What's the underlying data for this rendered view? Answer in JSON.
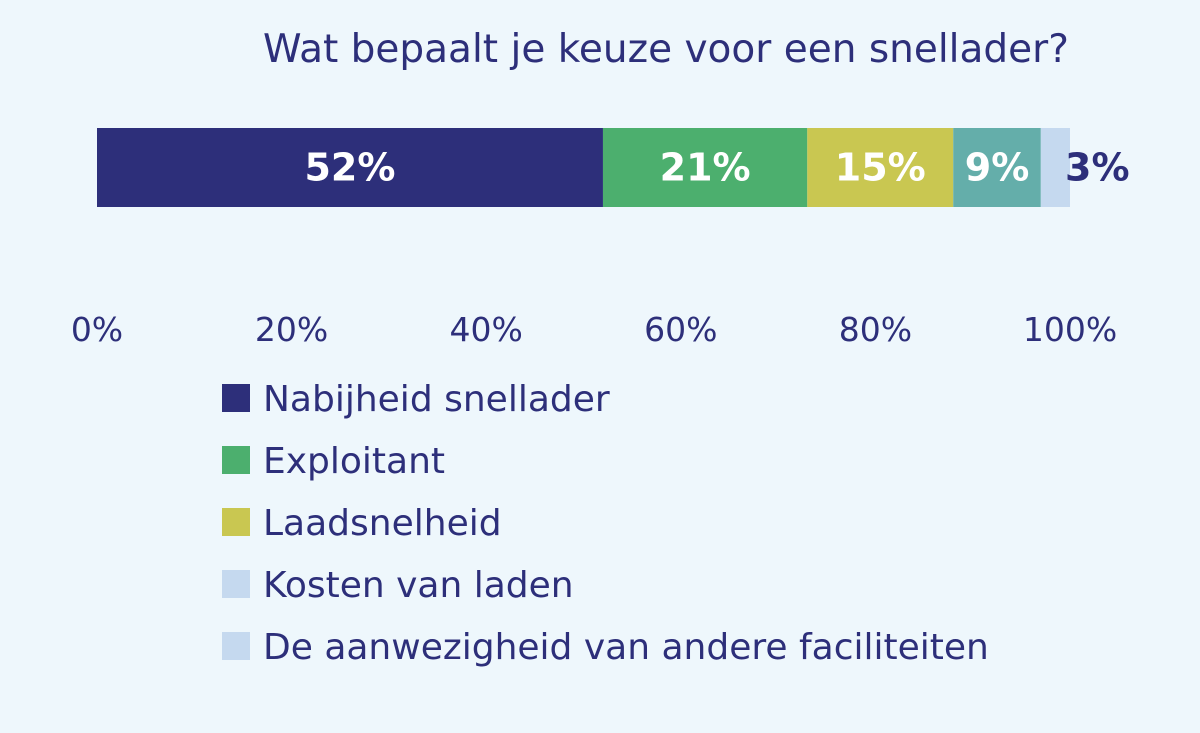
{
  "chart_data": {
    "type": "bar",
    "orientation": "horizontal-stacked",
    "title": "Wat bepaalt je keuze voor een snellader?",
    "series": [
      {
        "name": "Nabijheid snellader",
        "value": 52,
        "label": "52%",
        "color": "#2d2f7a"
      },
      {
        "name": "Exploitant",
        "value": 21,
        "label": "21%",
        "color": "#4caf6e"
      },
      {
        "name": "Laadsnelheid",
        "value": 15,
        "label": "15%",
        "color": "#c9c751"
      },
      {
        "name": "Kosten van laden",
        "value": 9,
        "label": "9%",
        "color": "#64aeaa"
      },
      {
        "name": "De aanwezigheid van andere faciliteiten",
        "value": 3,
        "label": "3%",
        "color": "#c5d9ef"
      }
    ],
    "x_ticks": [
      "0%",
      "20%",
      "40%",
      "60%",
      "80%",
      "100%"
    ],
    "xlim": [
      0,
      100
    ],
    "legend_position": "bottom",
    "legend_colors": [
      "#2d2f7a",
      "#4caf6e",
      "#c9c751",
      "#c5d9ef",
      "#c5d9ef"
    ],
    "grid": false
  }
}
